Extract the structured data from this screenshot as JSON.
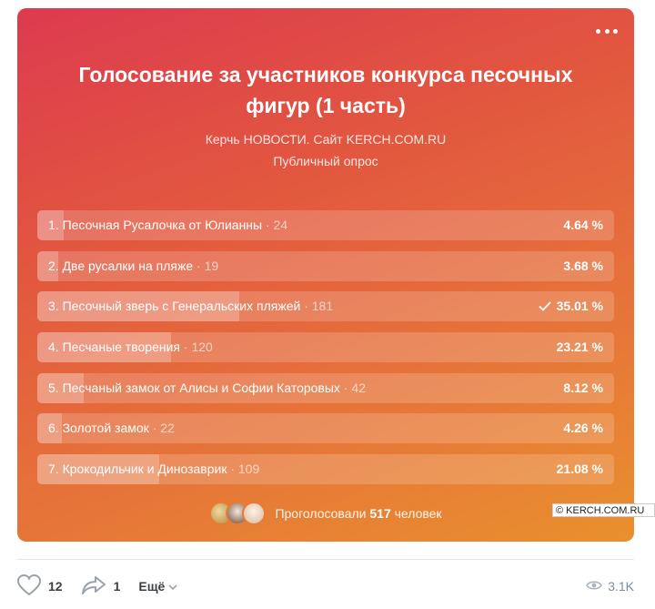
{
  "poll": {
    "title": "Голосование за участников конкурса песочных фигур (1 часть)",
    "author": "Керчь НОВОСТИ. Сайт KERCH.COM.RU",
    "type": "Публичный опрос",
    "options": [
      {
        "label": "1. Песочная Русалочка от Юлианны",
        "count": "· 24",
        "percent": "4.64 %",
        "fraction": 0.0464,
        "checked": false
      },
      {
        "label": "2. Две русалки на пляже",
        "count": "· 19",
        "percent": "3.68 %",
        "fraction": 0.0368,
        "checked": false
      },
      {
        "label": "3. Песочный зверь с Генеральских пляжей",
        "count": "· 181",
        "percent": "35.01 %",
        "fraction": 0.3501,
        "checked": true
      },
      {
        "label": "4. Песчаные творения",
        "count": "· 120",
        "percent": "23.21 %",
        "fraction": 0.2321,
        "checked": false
      },
      {
        "label": "5. Песчаный замок от Алисы и Софии Каторовых",
        "count": "· 42",
        "percent": "8.12 %",
        "fraction": 0.0812,
        "checked": false
      },
      {
        "label": "6. Золотой замок",
        "count": "· 22",
        "percent": "4.26 %",
        "fraction": 0.0426,
        "checked": false
      },
      {
        "label": "7. Крокодильчик и Динозаврик",
        "count": "· 109",
        "percent": "21.08 %",
        "fraction": 0.2108,
        "checked": false
      }
    ],
    "voters_prefix": "Проголосовали",
    "voters_count": "517",
    "voters_suffix": "человек"
  },
  "watermark": "© KERCH.COM.RU",
  "footer": {
    "likes": "12",
    "shares": "1",
    "more_label": "Ещё",
    "views": "3.1K"
  },
  "icons": {
    "menu": "more-dots-icon",
    "check": "check-icon",
    "like": "heart-icon",
    "share": "share-arrow-icon",
    "expand": "chevron-down-icon",
    "views": "eye-icon"
  }
}
